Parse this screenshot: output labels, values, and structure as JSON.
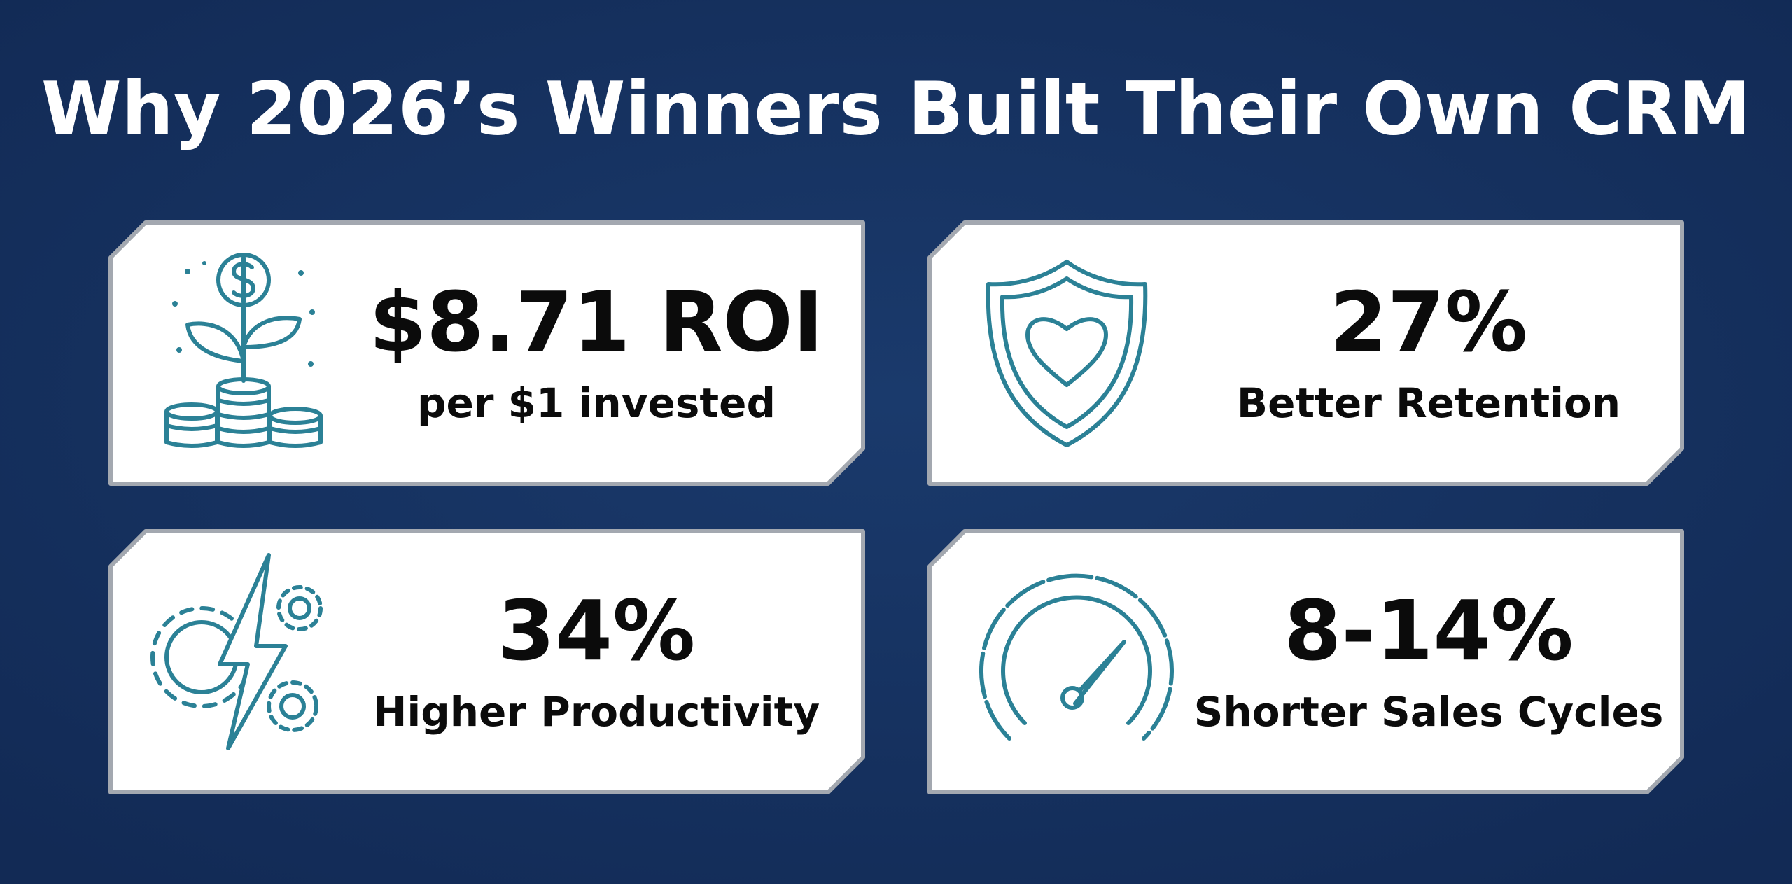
{
  "title": "Why 2026’s Winners Built Their Own CRM",
  "cards": [
    {
      "stat": "$8.71 ROI",
      "label": "per $1 invested"
    },
    {
      "stat": "27%",
      "label": "Better Retention"
    },
    {
      "stat": "34%",
      "label": "Higher Productivity"
    },
    {
      "stat": "8-14%",
      "label": "Shorter Sales Cycles"
    }
  ]
}
